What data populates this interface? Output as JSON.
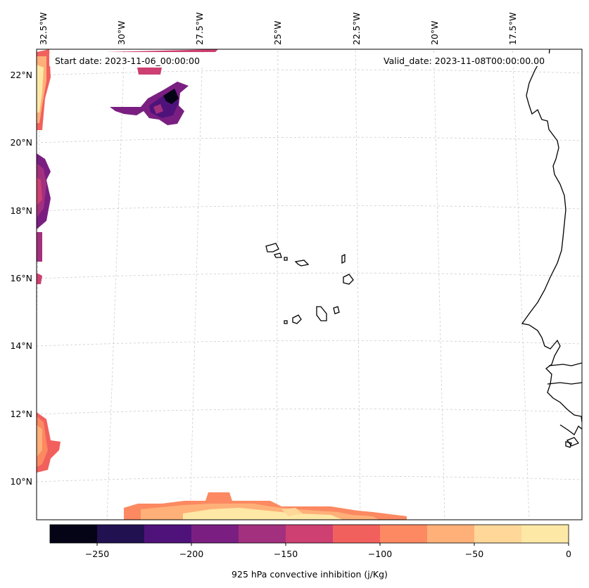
{
  "map": {
    "start_date": "Start date: 2023-11-06_00:00:00",
    "valid_date": "Valid_date: 2023-11-08T00:00:00.00",
    "lon_labels": [
      "32.5°W",
      "30°W",
      "27.5°W",
      "25°W",
      "22.5°W",
      "20°W",
      "17.5°W"
    ],
    "lat_labels": [
      "22°N",
      "20°N",
      "18°N",
      "16°N",
      "14°N",
      "12°N",
      "10°N"
    ]
  },
  "colorbar": {
    "label": "925 hPa convective inhibition (j/Kg)",
    "tick_labels": [
      "−250",
      "−200",
      "−150",
      "−100",
      "−50",
      "0"
    ],
    "colors": [
      "#050416",
      "#221150",
      "#4f127b",
      "#7a1f81",
      "#a3307e",
      "#cd4071",
      "#f1605d",
      "#fc8961",
      "#feb078",
      "#fed799",
      "#fde8a6"
    ]
  },
  "chart_data": {
    "type": "map",
    "title": "",
    "variable": "925 hPa convective inhibition",
    "units": "j/Kg",
    "start_date": "2023-11-06_00:00:00",
    "valid_date": "2023-11-08T00:00:00.00",
    "lon_range": [
      -33,
      -16
    ],
    "lat_range": [
      9,
      23
    ],
    "lon_ticks": [
      -32.5,
      -30,
      -27.5,
      -25,
      -22.5,
      -20,
      -17.5
    ],
    "lat_ticks": [
      22,
      20,
      18,
      16,
      14,
      12,
      10
    ],
    "colorbar_levels": [
      -275,
      -250,
      -225,
      -200,
      -175,
      -150,
      -125,
      -100,
      -75,
      -50,
      -25,
      0
    ],
    "colorbar_ticks": [
      -250,
      -200,
      -150,
      -100,
      -50,
      0
    ],
    "colormap": "magma",
    "regions": [
      "Cape Verde islands",
      "West African coast (Senegal, Gambia, Guinea-Bissau)"
    ]
  }
}
